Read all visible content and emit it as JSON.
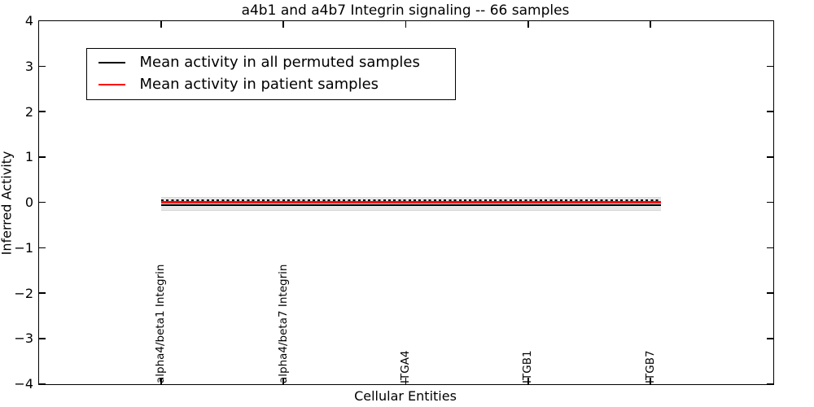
{
  "figure": {
    "title": "a4b1 and a4b7 Integrin signaling -- 66 samples",
    "xlabel": "Cellular Entities",
    "ylabel": "Inferred Activity"
  },
  "legend": {
    "position": "upper left",
    "items": [
      {
        "label": "Mean activity in all permuted samples",
        "color": "#000000"
      },
      {
        "label": "Mean activity in patient samples",
        "color": "#ff0000"
      }
    ]
  },
  "chart_data": {
    "type": "line",
    "title": "a4b1 and a4b7 Integrin signaling -- 66 samples",
    "xlabel": "Cellular Entities",
    "ylabel": "Inferred Activity",
    "ylim": [
      -4,
      4
    ],
    "xlim": [
      -1,
      5
    ],
    "yticks": [
      4,
      3,
      2,
      1,
      0,
      -1,
      -2,
      -3,
      -4
    ],
    "ytick_labels": [
      "4",
      "3",
      "2",
      "1",
      "0",
      "−1",
      "−2",
      "−3",
      "−4"
    ],
    "grid": false,
    "legend_position": "upper left",
    "categories": [
      "alpha4/beta1 Integrin",
      "alpha4/beta7 Integrin",
      "ITGA4",
      "ITGB1",
      "ITGB7"
    ],
    "series": [
      {
        "name": "Mean activity in all permuted samples",
        "color": "#000000",
        "style": "solid",
        "values": [
          -0.06,
          -0.08,
          -0.06,
          -0.06,
          -0.05
        ]
      },
      {
        "name": "Mean activity in patient samples",
        "color": "#ff0000",
        "style": "solid-with-black-dash-markers",
        "marker_color": "#000000",
        "values": [
          0.01,
          -0.01,
          0.0,
          0.0,
          0.02
        ]
      }
    ],
    "band": {
      "series": "Mean activity in all permuted samples",
      "color": "#e7e7e7",
      "upper": [
        0.12,
        0.1,
        0.12,
        0.12,
        0.14
      ],
      "lower": [
        -0.2,
        -0.24,
        -0.2,
        -0.18,
        -0.16
      ]
    }
  }
}
